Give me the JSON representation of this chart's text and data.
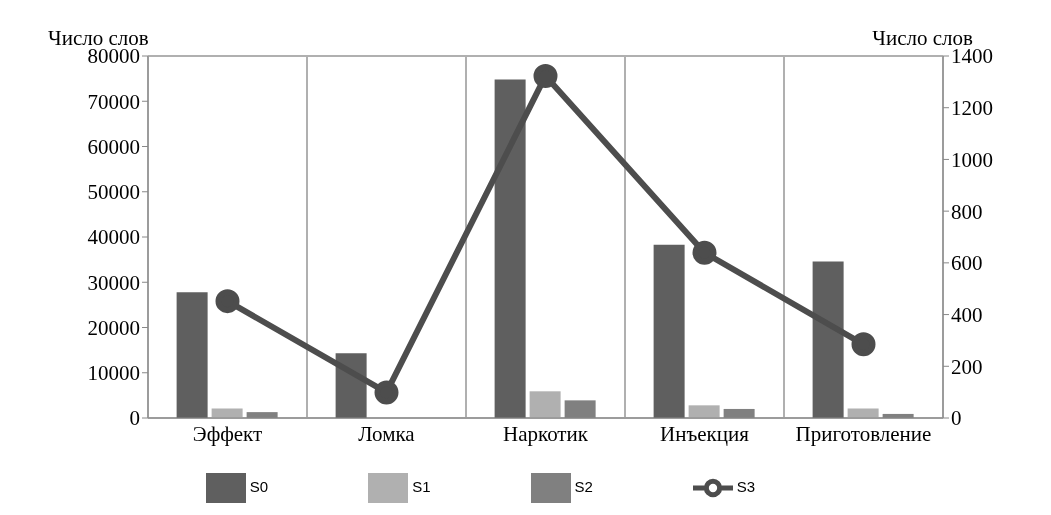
{
  "chart_data": {
    "type": "bar",
    "ylabel": "Число слов",
    "y2label": "Число слов",
    "categories": [
      "Эффект",
      "Ломка",
      "Наркотик",
      "Инъекция",
      "Приготовление"
    ],
    "series": [
      {
        "name": "S0",
        "color": "#5f5f5f",
        "values": [
          27800,
          14300,
          74800,
          38300,
          34600
        ]
      },
      {
        "name": "S1",
        "color": "#b0b0b0",
        "values": [
          2100,
          null,
          5900,
          2800,
          2100
        ]
      },
      {
        "name": "S2",
        "color": "#808080",
        "values": [
          1300,
          null,
          3900,
          2000,
          900
        ]
      },
      {
        "name": "S3",
        "color": "#4d4d4d",
        "type": "line",
        "axis": "y2",
        "marker": "circle",
        "values": [
          452,
          99,
          1323,
          639,
          285
        ]
      }
    ],
    "ylim": [
      0,
      80000
    ],
    "yticks": [
      0,
      10000,
      20000,
      30000,
      40000,
      50000,
      60000,
      70000,
      80000
    ],
    "y2lim": [
      0,
      1400
    ],
    "y2ticks": [
      0,
      200,
      400,
      600,
      800,
      1000,
      1200,
      1400
    ],
    "grid": true,
    "legend": "bottom"
  }
}
